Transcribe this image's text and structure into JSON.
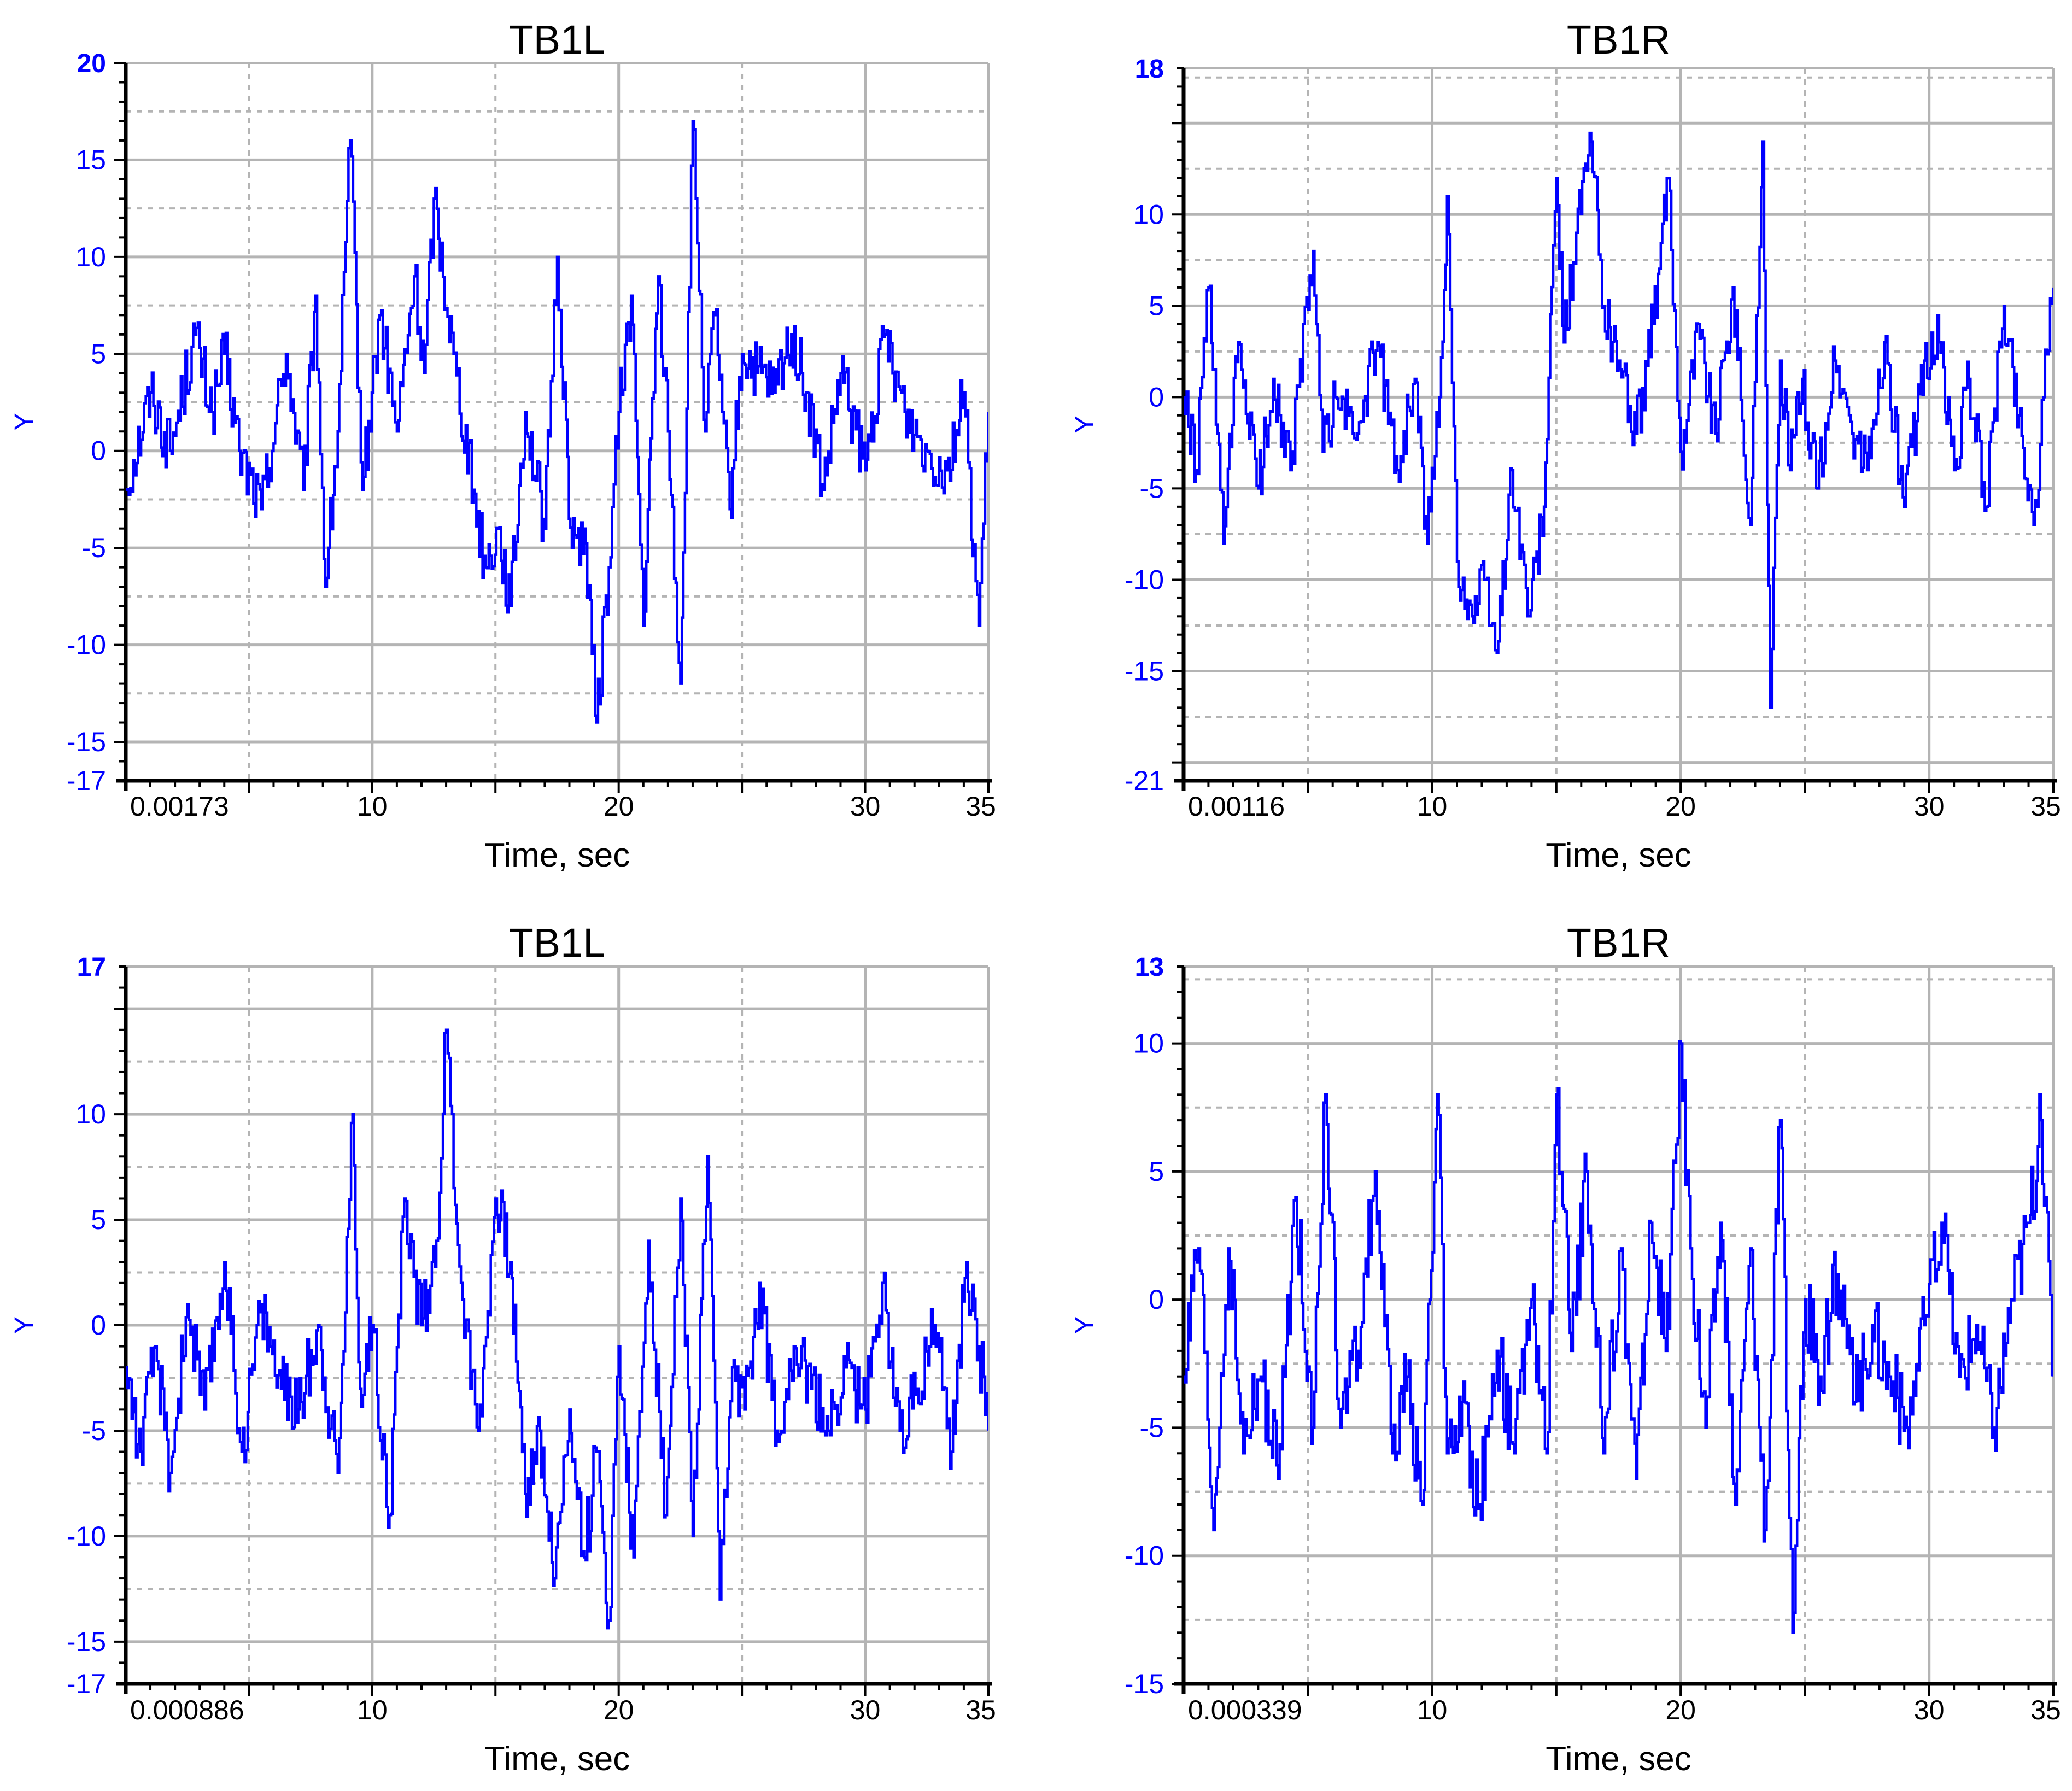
{
  "colors": {
    "line": "#0000ff",
    "axis": "#000000",
    "grid": "#b4b4b4",
    "tick_text": "#0000ff"
  },
  "chart_data": [
    {
      "type": "line",
      "title": "TB1L",
      "xlabel": "Time, sec",
      "ylabel": "Y",
      "xlim": [
        0.00173,
        35
      ],
      "ylim": [
        -17,
        20
      ],
      "x_ticks": [
        "0.00173",
        "10",
        "20",
        "30",
        "35"
      ],
      "x_tick_values": [
        0.00173,
        10,
        20,
        30,
        35
      ],
      "y_ticks": [
        "20",
        "15",
        "10",
        "5",
        "0",
        "-5",
        "-10",
        "-15",
        "-17"
      ],
      "y_tick_values": [
        20,
        15,
        10,
        5,
        0,
        -5,
        -10,
        -15,
        -17
      ],
      "grid": true,
      "series": [
        {
          "x": [
            0,
            1,
            1.8,
            2.8,
            3.5,
            4.0,
            4.6,
            5.5,
            6.5,
            7.2,
            7.7,
            8.1,
            8.6,
            9.1,
            9.6,
            10.3,
            11.0,
            11.7,
            12.1,
            12.5,
            13.3,
            14.1,
            14.6,
            15.1,
            15.6,
            16.2,
            17.0,
            17.5,
            18.1,
            18.6,
            19.1,
            19.6,
            20.0,
            20.5,
            21.0,
            21.6,
            22.0,
            22.5,
            23.0,
            23.5,
            23.9,
            24.2,
            24.5,
            25.0,
            25.6,
            26.3,
            27.0,
            27.6,
            28.3,
            29.0,
            30.0,
            30.8,
            31.6,
            32.5,
            33.3,
            34.0,
            34.6,
            35.0
          ],
          "values": [
            -2,
            3,
            0,
            6,
            2,
            5,
            0,
            -3,
            5,
            -2,
            8,
            -7,
            1,
            16,
            -2,
            7,
            1,
            9,
            4,
            13,
            5,
            -2,
            -6,
            -4,
            -8,
            2,
            -4,
            10,
            -5,
            -4,
            -14,
            -6,
            2,
            8,
            -9,
            9,
            1,
            -12,
            17,
            1,
            7,
            2,
            -3,
            5,
            4,
            3,
            6,
            3,
            -2,
            4,
            -1,
            6,
            2,
            0,
            -1,
            3,
            -9,
            2
          ]
        }
      ]
    },
    {
      "type": "line",
      "title": "TB1R",
      "xlabel": "Time, sec",
      "ylabel": "Y",
      "xlim": [
        0.00116,
        35
      ],
      "ylim": [
        -21,
        18
      ],
      "x_ticks": [
        "0.00116",
        "10",
        "20",
        "30",
        "35"
      ],
      "x_tick_values": [
        0.00116,
        10,
        20,
        30,
        35
      ],
      "y_ticks": [
        "18",
        "10",
        "5",
        "0",
        "-5",
        "-10",
        "-15",
        "-21"
      ],
      "y_tick_values": [
        18,
        10,
        5,
        0,
        -5,
        -10,
        -15,
        -21
      ],
      "grid": true,
      "series": [
        {
          "x": [
            0,
            0.5,
            1,
            1.6,
            2.2,
            3.0,
            3.6,
            4.3,
            5.2,
            5.6,
            6.1,
            7.0,
            7.8,
            8.6,
            9.3,
            9.8,
            10.3,
            10.6,
            11.0,
            11.6,
            12.1,
            12.6,
            13.2,
            13.9,
            14.5,
            15.0,
            15.3,
            15.8,
            16.4,
            16.9,
            17.5,
            18.2,
            18.9,
            19.5,
            20.0,
            20.7,
            21.4,
            22.1,
            22.8,
            23.3,
            23.6,
            24.0,
            24.4,
            24.9,
            25.5,
            26.2,
            26.9,
            27.5,
            28.2,
            29.0,
            29.8,
            30.4,
            31.0,
            31.6,
            32.3,
            33.0,
            33.6,
            34.2,
            34.6,
            35.0
          ],
          "values": [
            0,
            -4,
            6,
            -8,
            3,
            -5,
            1,
            -4,
            8,
            -3,
            0,
            -2,
            3,
            -4,
            1,
            -8,
            0,
            11,
            -9,
            -12,
            -10,
            -14,
            -4,
            -12,
            -6,
            12,
            3,
            9,
            14,
            5,
            2,
            -2,
            4,
            12,
            -3,
            4,
            -2,
            6,
            -7,
            14,
            -17,
            2,
            -4,
            1,
            -5,
            2,
            -2,
            -4,
            3,
            -6,
            2,
            3,
            -4,
            1,
            -6,
            5,
            -1,
            -7,
            0,
            6
          ]
        }
      ]
    },
    {
      "type": "line",
      "title": "TB1L",
      "xlabel": "Time, sec",
      "ylabel": "Y",
      "xlim": [
        0.000886,
        35
      ],
      "ylim": [
        -17,
        17
      ],
      "x_ticks": [
        "0.000886",
        "10",
        "20",
        "30",
        "35"
      ],
      "x_tick_values": [
        0.000886,
        10,
        20,
        30,
        35
      ],
      "y_ticks": [
        "17",
        "10",
        "5",
        "0",
        "-5",
        "-10",
        "-15",
        "-17"
      ],
      "y_tick_values": [
        17,
        10,
        5,
        0,
        -5,
        -10,
        -15,
        -17
      ],
      "grid": true,
      "series": [
        {
          "x": [
            0,
            0.6,
            1.2,
            1.8,
            2.5,
            3.2,
            4.0,
            4.7,
            5.5,
            6.3,
            7.0,
            7.8,
            8.6,
            9.2,
            9.5,
            10.0,
            10.7,
            11.3,
            12.0,
            12.6,
            13.0,
            13.6,
            14.3,
            15.0,
            15.6,
            16.2,
            16.8,
            17.4,
            18.0,
            18.6,
            19.1,
            19.6,
            20.0,
            20.6,
            21.2,
            21.9,
            22.5,
            23.0,
            23.6,
            24.1,
            24.6,
            25.1,
            25.7,
            26.4,
            27.1,
            27.8,
            28.5,
            29.2,
            30.0,
            30.7,
            31.4,
            32.1,
            32.8,
            33.5,
            34.1,
            34.6,
            35.0
          ],
          "values": [
            -2,
            -6,
            -1,
            -7,
            1,
            -4,
            3,
            -6,
            1,
            -3,
            -4,
            0,
            -7,
            10,
            -3,
            0,
            -9,
            6,
            0,
            4,
            14,
            2,
            -5,
            6,
            3,
            -8,
            -5,
            -12,
            -4,
            -11,
            -6,
            -14,
            -1,
            -11,
            4,
            -9,
            6,
            -10,
            8,
            -13,
            -2,
            -4,
            2,
            -5,
            -1,
            -3,
            -5,
            -2,
            -4,
            2,
            -5,
            -3,
            0,
            -6,
            3,
            -1,
            -5
          ]
        }
      ]
    },
    {
      "type": "line",
      "title": "TB1R",
      "xlabel": "Time, sec",
      "ylabel": "Y",
      "xlim": [
        0.000339,
        35
      ],
      "ylim": [
        -15,
        13
      ],
      "x_ticks": [
        "0.000339",
        "10",
        "20",
        "30",
        "35"
      ],
      "x_tick_values": [
        0.000339,
        10,
        20,
        30,
        35
      ],
      "y_ticks": [
        "13",
        "10",
        "5",
        "0",
        "-5",
        "-10",
        "-15"
      ],
      "y_tick_values": [
        13,
        10,
        5,
        0,
        -5,
        -10,
        -15
      ],
      "grid": true,
      "series": [
        {
          "x": [
            0,
            0.6,
            1.2,
            1.8,
            2.4,
            3.1,
            3.8,
            4.5,
            5.2,
            5.7,
            6.3,
            7.0,
            7.7,
            8.4,
            9.0,
            9.6,
            10.2,
            10.6,
            11.2,
            11.9,
            12.6,
            13.3,
            14.0,
            14.6,
            15.0,
            15.6,
            16.2,
            16.9,
            17.6,
            18.2,
            18.8,
            19.4,
            20.0,
            20.4,
            21.0,
            21.6,
            22.2,
            22.8,
            23.4,
            24.0,
            24.5,
            25.0,
            25.6,
            26.3,
            27.0,
            27.7,
            28.4,
            29.1,
            29.8,
            30.5,
            31.2,
            31.9,
            32.6,
            33.3,
            34.0,
            34.5,
            35.0
          ],
          "values": [
            -3,
            2,
            -9,
            2,
            -6,
            -3,
            -7,
            4,
            -5,
            8,
            -5,
            -2,
            5,
            -6,
            -3,
            -8,
            8,
            -6,
            -4,
            -8,
            -2,
            -6,
            0,
            -6,
            8,
            -2,
            5,
            -6,
            2,
            -7,
            3,
            -2,
            10,
            2,
            -5,
            3,
            -8,
            2,
            -9,
            7,
            -13,
            0,
            -3,
            1,
            -4,
            -1,
            -3,
            -5,
            -1,
            3,
            -3,
            -1,
            -5,
            0,
            3,
            7,
            -3
          ]
        }
      ]
    }
  ]
}
